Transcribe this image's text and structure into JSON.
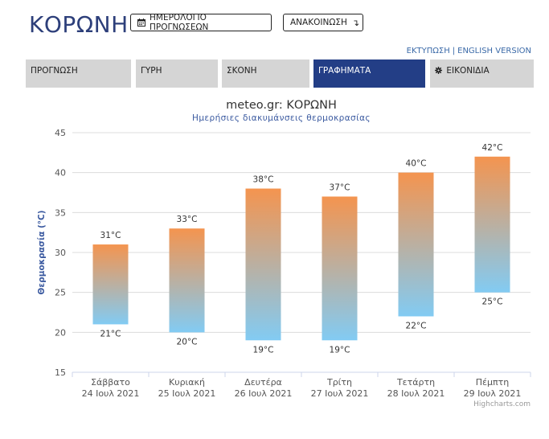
{
  "header": {
    "title": "ΚΟΡΩΝΗ",
    "calendar_button": "ΗΜΕΡΟΛΟΓΙΟ ΠΡΟΓΝΩΣΕΩΝ",
    "announcement_button": "ΑΝΑΚΟΙΝΩΣΗ",
    "print_link": "ΕΚΤΥΠΩΣΗ",
    "english_link": "ENGLISH VERSION",
    "link_separator": "|"
  },
  "tabs": [
    {
      "label": "ΠΡΟΓΝΩΣΗ",
      "active": false
    },
    {
      "label": "ΓΥΡΗ",
      "active": false
    },
    {
      "label": "ΣΚΟΝΗ",
      "active": false
    },
    {
      "label": "ΓΡΑΦΗΜΑΤΑ",
      "active": true
    },
    {
      "label": "ΕΙΚΟΝΙΔΙΑ",
      "active": false
    }
  ],
  "colors": {
    "brand": "#2d3f7a",
    "active_tab": "#233e86",
    "bar_top": "#f4944f",
    "bar_bottom": "#82cbf3",
    "link": "#3b6aa8"
  },
  "chart_data": {
    "type": "bar",
    "title": "meteo.gr: ΚΟΡΩΝΗ",
    "subtitle": "Ημερήσιες διακυμάνσεις θερμοκρασίας",
    "ylabel": "Θερμοκρασία (°C)",
    "ylim": [
      15,
      45
    ],
    "yticks": [
      15,
      20,
      25,
      30,
      35,
      40,
      45
    ],
    "unit": "°C",
    "grid": true,
    "categories": [
      {
        "day": "Σάββατο",
        "date": "24 Ιουλ 2021"
      },
      {
        "day": "Κυριακή",
        "date": "25 Ιουλ 2021"
      },
      {
        "day": "Δευτέρα",
        "date": "26 Ιουλ 2021"
      },
      {
        "day": "Τρίτη",
        "date": "27 Ιουλ 2021"
      },
      {
        "day": "Τετάρτη",
        "date": "28 Ιουλ 2021"
      },
      {
        "day": "Πέμπτη",
        "date": "29 Ιουλ 2021"
      }
    ],
    "ranges": [
      {
        "low": 21,
        "high": 31
      },
      {
        "low": 20,
        "high": 33
      },
      {
        "low": 19,
        "high": 38
      },
      {
        "low": 19,
        "high": 37
      },
      {
        "low": 22,
        "high": 40
      },
      {
        "low": 25,
        "high": 42
      }
    ],
    "credits": "Highcharts.com"
  }
}
